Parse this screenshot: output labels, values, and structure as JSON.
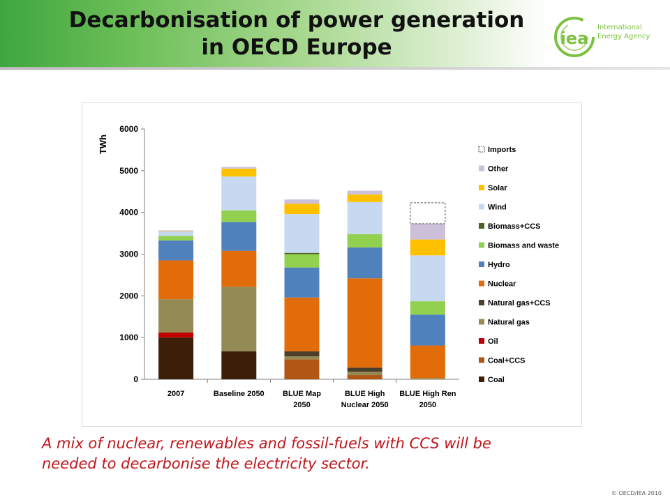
{
  "slide": {
    "title_line1": "Decarbonisation of power generation",
    "title_line2": "in OECD Europe",
    "caption_line1": "A mix of nuclear, renewables and fossil-fuels with CCS will be",
    "caption_line2": "needed to decarbonise the electricity sector.",
    "copyright": "© OECD/IEA 2010"
  },
  "logo": {
    "mark": "iea",
    "line1": "International",
    "line2": "Energy Agency",
    "color": "#7cc142"
  },
  "chart_data": {
    "type": "bar",
    "stacked": true,
    "ylabel": "TWh",
    "ylim": [
      0,
      6000
    ],
    "yticks": [
      0,
      1000,
      2000,
      3000,
      4000,
      5000,
      6000
    ],
    "grid": false,
    "legend_position": "right",
    "categories": [
      [
        "2007"
      ],
      [
        "Baseline 2050"
      ],
      [
        "BLUE Map",
        "2050"
      ],
      [
        "BLUE High",
        "Nuclear 2050"
      ],
      [
        "BLUE High Ren",
        "2050"
      ]
    ],
    "series": [
      {
        "name": "Coal",
        "color": "#3b1f08",
        "values": [
          1000,
          670,
          0,
          0,
          0
        ]
      },
      {
        "name": "Coal+CCS",
        "color": "#b25616",
        "values": [
          0,
          0,
          480,
          100,
          0
        ]
      },
      {
        "name": "Oil",
        "color": "#c00000",
        "values": [
          120,
          0,
          0,
          0,
          0
        ]
      },
      {
        "name": "Natural gas",
        "color": "#948a54",
        "values": [
          800,
          1550,
          70,
          80,
          30
        ]
      },
      {
        "name": "Natural gas+CCS",
        "color": "#4b3f2b",
        "values": [
          0,
          0,
          120,
          100,
          0
        ]
      },
      {
        "name": "Nuclear",
        "color": "#e36c0a",
        "values": [
          930,
          860,
          1290,
          2140,
          780
        ]
      },
      {
        "name": "Hydro",
        "color": "#4f81bd",
        "values": [
          480,
          690,
          720,
          740,
          740
        ]
      },
      {
        "name": "Biomass and waste",
        "color": "#92d050",
        "values": [
          110,
          280,
          320,
          320,
          320
        ]
      },
      {
        "name": "Biomass+CCS",
        "color": "#4f6228",
        "values": [
          0,
          0,
          30,
          0,
          0
        ]
      },
      {
        "name": "Wind",
        "color": "#c6d9f1",
        "values": [
          100,
          810,
          930,
          770,
          1100
        ]
      },
      {
        "name": "Solar",
        "color": "#ffc000",
        "values": [
          10,
          190,
          250,
          180,
          380
        ]
      },
      {
        "name": "Other",
        "color": "#ccc0da",
        "values": [
          20,
          40,
          100,
          90,
          380
        ]
      },
      {
        "name": "Imports",
        "color": "#ffffff",
        "dashed": true,
        "values": [
          0,
          0,
          0,
          0,
          500
        ]
      }
    ]
  }
}
